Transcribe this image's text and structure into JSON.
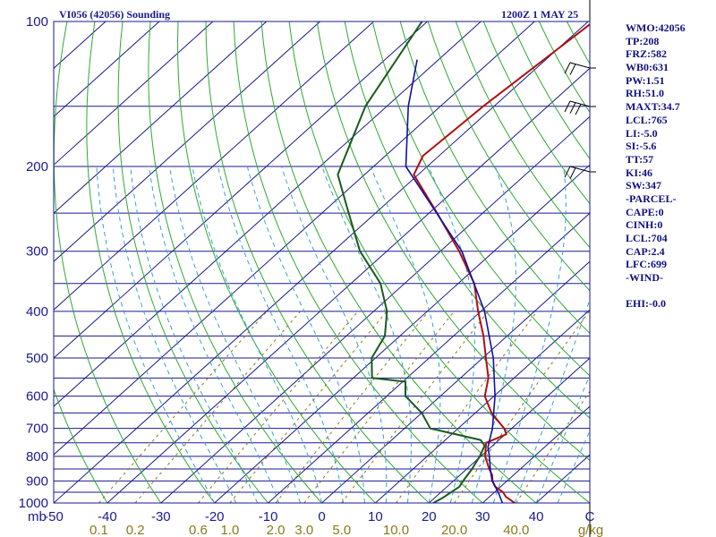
{
  "header": {
    "title_left": "VI056 (42056) Sounding",
    "title_right": "1200Z  1 MAY 25"
  },
  "stats": [
    "WMO:42056",
    "TP:208",
    "FRZ:582",
    "WB0:631",
    "PW:1.51",
    "RH:51.0",
    "MAXT:34.7",
    "LCL:765",
    "LI:-5.0",
    "SI:-5.6",
    "TT:57",
    "KI:46",
    "SW:347",
    "-PARCEL-",
    "CAPE:0",
    "CINH:0",
    "LCL:704",
    "CAP:2.4",
    "LFC:699",
    "-WIND-",
    "",
    "EHI:-0.0"
  ],
  "chart_data": {
    "type": "line",
    "chart_kind": "skew-T log-P sounding",
    "pressure_labels": [
      "100",
      "200",
      "300",
      "400",
      "500",
      "600",
      "700",
      "800",
      "900",
      "1000"
    ],
    "pressure_ticks": [
      100,
      200,
      300,
      400,
      500,
      600,
      700,
      800,
      900,
      1000
    ],
    "pressure_corner_label": "mb",
    "temperature_labels": [
      "-50",
      "-40",
      "-30",
      "-20",
      "-10",
      "0",
      "10",
      "20",
      "30",
      "40",
      "C"
    ],
    "mixing_ratio_labels": [
      "0.1",
      "0.2",
      "0.6",
      "1.0",
      "2.0",
      "3.0",
      "5.0",
      "10.0",
      "20.0",
      "40.0",
      "g/kg"
    ],
    "colors": {
      "isobar": "#1a1a8c",
      "isotherm": "#1a1a8c",
      "dry_adiabat": "#2eaa2e",
      "moist_adiabat": "#3aa0d0",
      "mixing_ratio": "#8a7a1a",
      "temperature": "#b01010",
      "dewpoint": "#1a5a1a",
      "parcel": "#1010a0"
    },
    "series": [
      {
        "key": "temperature",
        "points": [
          [
            1000,
            36.0
          ],
          [
            970,
            33.0
          ],
          [
            950,
            31.6
          ],
          [
            925,
            29.0
          ],
          [
            900,
            27.3
          ],
          [
            875,
            26.0
          ],
          [
            850,
            24.2
          ],
          [
            800,
            20.8
          ],
          [
            750,
            18.2
          ],
          [
            720,
            20.2
          ],
          [
            700,
            18.6
          ],
          [
            650,
            13.0
          ],
          [
            600,
            8.3
          ],
          [
            550,
            5.2
          ],
          [
            500,
            0.6
          ],
          [
            450,
            -4.4
          ],
          [
            400,
            -10.5
          ],
          [
            350,
            -17.0
          ],
          [
            300,
            -26.5
          ],
          [
            250,
            -38.5
          ],
          [
            208,
            -50.8
          ],
          [
            190,
            -53.0
          ],
          [
            150,
            -52.0
          ],
          [
            100,
            -49.0
          ]
        ]
      },
      {
        "key": "dewpoint",
        "points": [
          [
            1000,
            20.8
          ],
          [
            975,
            21.5
          ],
          [
            950,
            21.9
          ],
          [
            925,
            22.3
          ],
          [
            900,
            21.8
          ],
          [
            850,
            21.0
          ],
          [
            800,
            19.8
          ],
          [
            760,
            18.5
          ],
          [
            740,
            16.6
          ],
          [
            700,
            4.8
          ],
          [
            650,
            0.0
          ],
          [
            600,
            -6.5
          ],
          [
            560,
            -9.5
          ],
          [
            550,
            -16.5
          ],
          [
            500,
            -20.7
          ],
          [
            450,
            -22.8
          ],
          [
            400,
            -27.5
          ],
          [
            350,
            -34.5
          ],
          [
            300,
            -45.0
          ],
          [
            250,
            -55.0
          ],
          [
            208,
            -65.0
          ],
          [
            150,
            -74.0
          ],
          [
            100,
            -81.0
          ]
        ]
      },
      {
        "key": "parcel",
        "points": [
          [
            1000,
            33.7
          ],
          [
            950,
            30.7
          ],
          [
            900,
            27.2
          ],
          [
            850,
            24.4
          ],
          [
            800,
            21.6
          ],
          [
            765,
            19.4
          ],
          [
            700,
            16.4
          ],
          [
            600,
            10.2
          ],
          [
            500,
            2.0
          ],
          [
            400,
            -9.3
          ],
          [
            300,
            -26.0
          ],
          [
            200,
            -54.0
          ],
          [
            150,
            -66.0
          ],
          [
            120,
            -74.0
          ]
        ]
      }
    ]
  }
}
